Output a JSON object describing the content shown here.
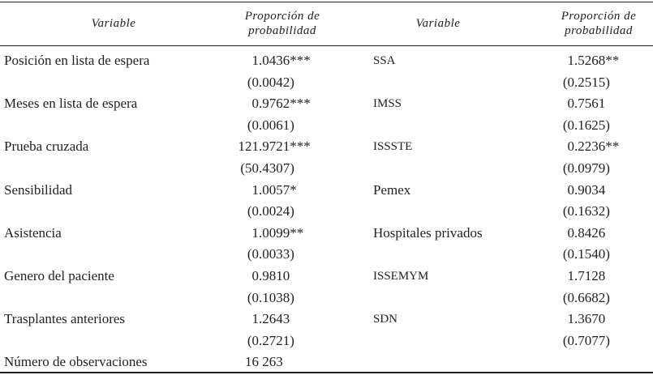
{
  "table": {
    "headers": [
      "Variable",
      "Proporción de\nprobabilidad",
      "Variable",
      "Proporción de\nprobabilidad"
    ],
    "rows": [
      {
        "left": {
          "variable": "Posición en lista de espera",
          "value": "1.0436***",
          "se": "(0.0042)"
        },
        "right": {
          "variable": "SSA",
          "value": "1.5268**",
          "se": "(0.2515)"
        }
      },
      {
        "left": {
          "variable": "Meses en lista de espera",
          "value": "0.9762***",
          "se": "(0.0061)"
        },
        "right": {
          "variable": "IMSS",
          "value": "0.7561",
          "se": "(0.1625)"
        }
      },
      {
        "left": {
          "variable": "Prueba cruzada",
          "value": "121.9721***",
          "se": "(50.4307)"
        },
        "right": {
          "variable": "ISSSTE",
          "value": "0.2236**",
          "se": "(0.0979)"
        }
      },
      {
        "left": {
          "variable": "Sensibilidad",
          "value": "1.0057*",
          "se": "(0.0024)"
        },
        "right": {
          "variable": "Pemex",
          "value": "0.9034",
          "se": "(0.1632)"
        }
      },
      {
        "left": {
          "variable": "Asistencia",
          "value": "1.0099**",
          "se": "(0.0033)"
        },
        "right": {
          "variable": "Hospitales privados",
          "value": "0.8426",
          "se": "(0.1540)"
        }
      },
      {
        "left": {
          "variable": "Genero del paciente",
          "value": "0.9810",
          "se": "(0.1038)"
        },
        "right": {
          "variable": "ISSEMYM",
          "value": "1.7128",
          "se": "(0.6682)"
        }
      },
      {
        "left": {
          "variable": "Trasplantes anteriores",
          "value": "1.2643",
          "se": "(0.2721)"
        },
        "right": {
          "variable": "SDN",
          "value": "1.3670",
          "se": "(0.7077)"
        }
      }
    ],
    "observations": {
      "label": "Número de observaciones",
      "value": "16 263"
    }
  }
}
